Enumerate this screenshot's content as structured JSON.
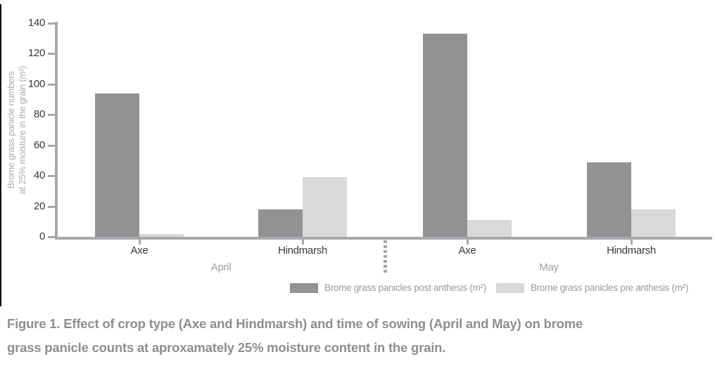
{
  "colors": {
    "post_bar": "#909294",
    "pre_bar": "#d8d9db",
    "axis": "#a6a8ab",
    "tick_text": "#39393d",
    "crop_text": "#3b3b3d",
    "month_text": "#9da0a3",
    "y_title_text": "#aaacaf",
    "legend_text": "#97999c",
    "caption_text": "#8c8f92",
    "left_rule": "#111111"
  },
  "chart_data": {
    "type": "bar",
    "title": "",
    "xlabel": "",
    "ylabel_line1": "Brome grass panicle numbers",
    "ylabel_line2": "at 25% moisture in the grain (m²)",
    "ylim": [
      0,
      140
    ],
    "yticks": [
      0,
      20,
      40,
      60,
      80,
      100,
      120,
      140
    ],
    "grid": "off",
    "legend_position": "bottom",
    "series": [
      {
        "name": "Brome grass panicles post anthesis (m²)",
        "color": "#909294"
      },
      {
        "name": "Brome grass panicles pre anthesis (m²)",
        "color": "#d8d9db"
      }
    ],
    "month_labels": [
      "April",
      "May"
    ],
    "groups": [
      {
        "month": "April",
        "crop": "Axe",
        "post": 94,
        "pre": 2
      },
      {
        "month": "April",
        "crop": "Hindmarsh",
        "post": 18,
        "pre": 39
      },
      {
        "month": "May",
        "crop": "Axe",
        "post": 133,
        "pre": 11
      },
      {
        "month": "May",
        "crop": "Hindmarsh",
        "post": 49,
        "pre": 18
      }
    ]
  },
  "caption": {
    "line1": "Figure 1. Effect of crop type (Axe and Hindmarsh) and time of sowing (April and May) on brome",
    "line2": "grass panicle counts at aproxamately 25% moisture content in the grain."
  }
}
